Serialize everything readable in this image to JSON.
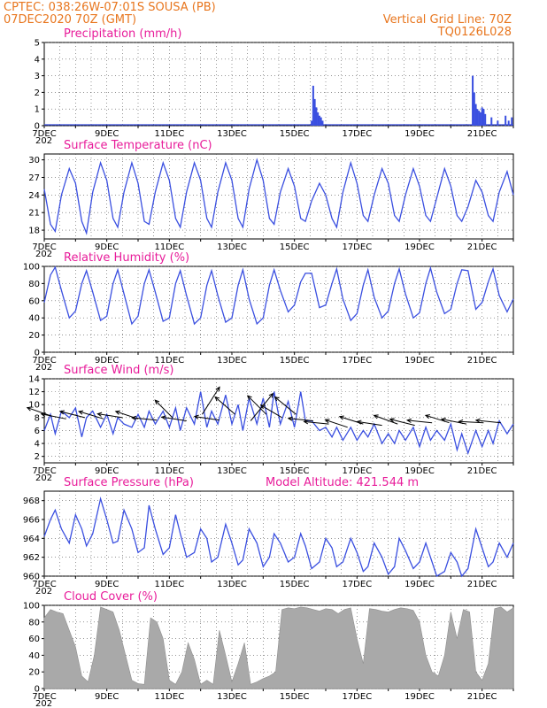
{
  "header": {
    "line1_left": "CPTEC:   038:26W-07:01S   SOUSA (PB)",
    "line2_left": "07DEC2020 70Z (GMT)",
    "line1_right": "Vertical Grid Line: 70Z",
    "line2_right": "TQ0126L028"
  },
  "x_axis": {
    "date_labels": [
      "7DEC",
      "9DEC",
      "11DEC",
      "13DEC",
      "15DEC",
      "17DEC",
      "19DEC",
      "21DEC"
    ],
    "year_stub": "202"
  },
  "colors": {
    "line": "#3a4fe0",
    "header": "#e8761e",
    "title": "#e81c9a",
    "cloud": "#a9a9a9",
    "arrow": "#000000"
  },
  "chart_data": [
    {
      "type": "bar",
      "title": "Precipitation (mm/h)",
      "ylim": [
        0,
        5
      ],
      "yticks": [
        0,
        1,
        2,
        3,
        4,
        5
      ],
      "x_unit": "days since 7DEC 00Z",
      "xlim": [
        0,
        15
      ],
      "series": [
        {
          "x": [
            8.55,
            8.6,
            8.65,
            8.7,
            8.75,
            8.8,
            8.85,
            8.9,
            13.7,
            13.75,
            13.8,
            13.85,
            13.9,
            13.95,
            14.0,
            14.05,
            14.1,
            14.3,
            14.5,
            14.75,
            14.85,
            14.95
          ],
          "values": [
            0.3,
            2.4,
            1.6,
            1.1,
            0.8,
            0.6,
            0.5,
            0.3,
            3.0,
            2.0,
            1.3,
            1.0,
            0.9,
            0.8,
            1.1,
            1.0,
            0.7,
            0.5,
            0.3,
            0.6,
            0.3,
            0.5
          ]
        }
      ]
    },
    {
      "type": "line",
      "title": "Surface Temperature (nC)",
      "ylim": [
        16.5,
        31
      ],
      "yticks": [
        18,
        21,
        24,
        27,
        30
      ],
      "x_unit": "days since 7DEC 00Z",
      "series": [
        {
          "x": [
            0,
            0.2,
            0.35,
            0.55,
            0.8,
            1.0,
            1.2,
            1.35,
            1.55,
            1.8,
            2.0,
            2.2,
            2.35,
            2.55,
            2.8,
            3.0,
            3.2,
            3.35,
            3.55,
            3.8,
            4.0,
            4.2,
            4.35,
            4.55,
            4.8,
            5.0,
            5.2,
            5.35,
            5.55,
            5.8,
            6.0,
            6.2,
            6.35,
            6.55,
            6.8,
            7.0,
            7.2,
            7.35,
            7.55,
            7.8,
            8.0,
            8.2,
            8.35,
            8.55,
            8.8,
            9.0,
            9.2,
            9.35,
            9.55,
            9.8,
            10.0,
            10.2,
            10.35,
            10.55,
            10.8,
            11.0,
            11.2,
            11.35,
            11.55,
            11.8,
            12.0,
            12.2,
            12.35,
            12.55,
            12.8,
            13.0,
            13.2,
            13.35,
            13.55,
            13.8,
            14.0,
            14.2,
            14.35,
            14.55,
            14.8,
            15.0
          ],
          "values": [
            25,
            19,
            17.8,
            24,
            28.5,
            26,
            19.5,
            17.5,
            24.5,
            29.5,
            26.5,
            20,
            18.5,
            24.5,
            29.5,
            26,
            19.5,
            19,
            24.5,
            29.5,
            26.5,
            20,
            18.5,
            24.5,
            29.5,
            26.5,
            20,
            18.5,
            24.5,
            29.5,
            26.5,
            20,
            18.5,
            25,
            30,
            26.5,
            20,
            19,
            24.5,
            28.5,
            25.5,
            20,
            19.5,
            23,
            26,
            24,
            20,
            18.5,
            24.5,
            29.5,
            26,
            20.5,
            19.5,
            24,
            28.5,
            26,
            20.5,
            19.5,
            24,
            28.5,
            25.5,
            20.5,
            19.5,
            23.5,
            28.5,
            25.5,
            20.5,
            19.5,
            22,
            26.5,
            24.5,
            20.5,
            19.5,
            24.5,
            28,
            24
          ]
        }
      ]
    },
    {
      "type": "line",
      "title": "Relative Humidity (%)",
      "ylim": [
        0,
        100
      ],
      "yticks": [
        0,
        20,
        40,
        60,
        80,
        100
      ],
      "x_unit": "days since 7DEC 00Z",
      "series": [
        {
          "x": [
            0,
            0.2,
            0.35,
            0.55,
            0.8,
            1.0,
            1.2,
            1.35,
            1.55,
            1.8,
            2.0,
            2.2,
            2.35,
            2.55,
            2.8,
            3.0,
            3.2,
            3.35,
            3.55,
            3.8,
            4.0,
            4.2,
            4.35,
            4.55,
            4.8,
            5.0,
            5.2,
            5.35,
            5.55,
            5.8,
            6.0,
            6.2,
            6.35,
            6.55,
            6.8,
            7.0,
            7.2,
            7.35,
            7.55,
            7.8,
            8.0,
            8.2,
            8.35,
            8.55,
            8.8,
            9.0,
            9.2,
            9.35,
            9.55,
            9.8,
            10.0,
            10.2,
            10.35,
            10.55,
            10.8,
            11.0,
            11.2,
            11.35,
            11.55,
            11.8,
            12.0,
            12.2,
            12.35,
            12.55,
            12.8,
            13.0,
            13.2,
            13.35,
            13.55,
            13.8,
            14.0,
            14.2,
            14.35,
            14.55,
            14.8,
            15.0
          ],
          "values": [
            58,
            90,
            99,
            72,
            40,
            48,
            80,
            95,
            70,
            37,
            42,
            80,
            96,
            68,
            33,
            42,
            80,
            96,
            70,
            36,
            40,
            80,
            95,
            66,
            33,
            40,
            78,
            95,
            66,
            35,
            40,
            78,
            96,
            62,
            33,
            40,
            78,
            96,
            72,
            47,
            55,
            82,
            92,
            92,
            52,
            55,
            80,
            97,
            62,
            37,
            45,
            78,
            96,
            64,
            40,
            48,
            80,
            97,
            68,
            40,
            46,
            80,
            98,
            70,
            45,
            50,
            80,
            96,
            95,
            50,
            58,
            82,
            97,
            66,
            47,
            62
          ]
        }
      ]
    },
    {
      "type": "line",
      "title": "Surface Wind (m/s)",
      "ylim": [
        1,
        14
      ],
      "yticks": [
        2,
        4,
        6,
        8,
        10,
        12,
        14
      ],
      "x_unit": "days since 7DEC 00Z",
      "series": [
        {
          "x": [
            0,
            0.2,
            0.35,
            0.55,
            0.8,
            1.0,
            1.2,
            1.35,
            1.55,
            1.8,
            2.0,
            2.2,
            2.35,
            2.55,
            2.8,
            3.0,
            3.2,
            3.35,
            3.55,
            3.8,
            4.0,
            4.2,
            4.35,
            4.55,
            4.8,
            5.0,
            5.2,
            5.35,
            5.55,
            5.8,
            6.0,
            6.2,
            6.35,
            6.55,
            6.8,
            7.0,
            7.2,
            7.35,
            7.55,
            7.8,
            8.0,
            8.2,
            8.35,
            8.55,
            8.8,
            9.0,
            9.2,
            9.35,
            9.55,
            9.8,
            10.0,
            10.2,
            10.35,
            10.55,
            10.8,
            11.0,
            11.2,
            11.35,
            11.55,
            11.8,
            12.0,
            12.2,
            12.35,
            12.55,
            12.8,
            13.0,
            13.2,
            13.35,
            13.55,
            13.8,
            14.0,
            14.2,
            14.35,
            14.55,
            14.8,
            15.0
          ],
          "values": [
            6,
            8.5,
            5.5,
            9,
            8,
            9.5,
            5,
            8,
            9,
            6.5,
            8.5,
            5.5,
            8,
            7,
            6.5,
            8.5,
            6.5,
            9,
            7,
            9,
            6.5,
            9.5,
            6,
            9.5,
            7,
            12,
            6.5,
            9,
            7,
            11.5,
            7,
            10,
            6,
            11,
            7,
            11,
            6.5,
            12,
            7,
            10.5,
            6.5,
            12,
            7.5,
            7.5,
            6,
            6.5,
            5,
            6.5,
            4.5,
            6.5,
            4.5,
            6,
            5,
            7,
            4,
            5.5,
            4,
            6,
            4.5,
            6.5,
            3.5,
            6.5,
            4.5,
            6,
            4.5,
            7,
            3,
            5.5,
            2.5,
            6,
            3.5,
            6,
            4,
            7.5,
            5.5,
            7
          ]
        }
      ]
    },
    {
      "type": "line",
      "title": "Surface Pressure (hPa)",
      "subtitle": "Model Altitude: 421.544 m",
      "ylim": [
        960,
        969
      ],
      "yticks": [
        960,
        962,
        964,
        966,
        968
      ],
      "x_unit": "days since 7DEC 00Z",
      "series": [
        {
          "x": [
            0,
            0.2,
            0.35,
            0.55,
            0.8,
            1.0,
            1.2,
            1.35,
            1.55,
            1.8,
            2.0,
            2.2,
            2.35,
            2.55,
            2.8,
            3.0,
            3.2,
            3.35,
            3.55,
            3.8,
            4.0,
            4.2,
            4.35,
            4.55,
            4.8,
            5.0,
            5.2,
            5.35,
            5.55,
            5.8,
            6.0,
            6.2,
            6.35,
            6.55,
            6.8,
            7.0,
            7.2,
            7.35,
            7.55,
            7.8,
            8.0,
            8.2,
            8.35,
            8.55,
            8.8,
            9.0,
            9.2,
            9.35,
            9.55,
            9.8,
            10.0,
            10.2,
            10.35,
            10.55,
            10.8,
            11.0,
            11.2,
            11.35,
            11.55,
            11.8,
            12.0,
            12.2,
            12.35,
            12.55,
            12.8,
            13.0,
            13.2,
            13.35,
            13.55,
            13.8,
            14.0,
            14.2,
            14.35,
            14.55,
            14.8,
            15.0
          ],
          "values": [
            964.2,
            966,
            967,
            965,
            963.5,
            966.5,
            965,
            963.2,
            964.5,
            968.2,
            966,
            963.5,
            963.7,
            967,
            965,
            962.5,
            963,
            967.5,
            965,
            962.3,
            963,
            966.5,
            964.5,
            962,
            962.5,
            965,
            964,
            961.5,
            962,
            965.5,
            963.5,
            961.2,
            961.7,
            965,
            963.5,
            961,
            962,
            964.5,
            963.5,
            961.5,
            962,
            964.5,
            963.2,
            960.8,
            961.5,
            964,
            963,
            961,
            961.5,
            964,
            962.5,
            960.5,
            961,
            963.5,
            962,
            960.2,
            961,
            964,
            962.7,
            960.8,
            961.5,
            963.5,
            962,
            960,
            960.5,
            962.5,
            961.5,
            960,
            960.8,
            965,
            963,
            961,
            961.5,
            963.5,
            962,
            963.5
          ]
        }
      ]
    },
    {
      "type": "area",
      "title": "Cloud Cover (%)",
      "ylim": [
        0,
        100
      ],
      "yticks": [
        0,
        20,
        40,
        60,
        80,
        100
      ],
      "x_unit": "days since 7DEC 00Z",
      "series": [
        {
          "x": [
            0,
            0.2,
            0.4,
            0.6,
            0.8,
            1.0,
            1.2,
            1.4,
            1.6,
            1.8,
            2.0,
            2.2,
            2.4,
            2.6,
            2.8,
            3.0,
            3.2,
            3.4,
            3.6,
            3.8,
            4.0,
            4.2,
            4.4,
            4.6,
            4.8,
            5.0,
            5.2,
            5.4,
            5.6,
            5.8,
            6.0,
            6.2,
            6.4,
            6.6,
            6.8,
            7.0,
            7.2,
            7.4,
            7.6,
            7.8,
            8.0,
            8.2,
            8.4,
            8.6,
            8.8,
            9.0,
            9.2,
            9.4,
            9.6,
            9.8,
            10.0,
            10.2,
            10.4,
            10.6,
            10.8,
            11.0,
            11.2,
            11.4,
            11.6,
            11.8,
            12.0,
            12.2,
            12.4,
            12.6,
            12.8,
            13.0,
            13.2,
            13.4,
            13.6,
            13.8,
            14.0,
            14.2,
            14.4,
            14.6,
            14.8,
            15.0
          ],
          "values": [
            85,
            95,
            92,
            90,
            70,
            50,
            15,
            8,
            40,
            98,
            95,
            92,
            70,
            40,
            10,
            6,
            5,
            85,
            80,
            60,
            10,
            5,
            20,
            55,
            35,
            5,
            10,
            5,
            70,
            40,
            8,
            30,
            55,
            5,
            8,
            12,
            15,
            20,
            95,
            97,
            96,
            98,
            97,
            95,
            93,
            96,
            95,
            90,
            95,
            97,
            60,
            30,
            96,
            95,
            93,
            92,
            95,
            97,
            96,
            94,
            80,
            40,
            20,
            15,
            40,
            92,
            60,
            95,
            92,
            20,
            10,
            30,
            96,
            98,
            92,
            97
          ]
        }
      ]
    },
    {
      "type": "vector",
      "title": "Surface Wind direction",
      "x_unit": "days since 7DEC 00Z",
      "points": [
        {
          "x": 0.25,
          "y": 8.2,
          "u": -1.0,
          "v": 0.35
        },
        {
          "x": 0.7,
          "y": 7.8,
          "u": -1.0,
          "v": 0.2
        },
        {
          "x": 1.3,
          "y": 8.0,
          "u": -1.0,
          "v": 0.25
        },
        {
          "x": 1.9,
          "y": 7.8,
          "u": -1.0,
          "v": 0.3
        },
        {
          "x": 2.5,
          "y": 8.0,
          "u": -1.0,
          "v": 0.15
        },
        {
          "x": 3.0,
          "y": 7.8,
          "u": -0.9,
          "v": 0.3
        },
        {
          "x": 3.6,
          "y": 7.6,
          "u": -1.0,
          "v": 0.1
        },
        {
          "x": 4.1,
          "y": 8.0,
          "u": -0.7,
          "v": 0.7
        },
        {
          "x": 4.55,
          "y": 7.5,
          "u": -1.0,
          "v": 0.15
        },
        {
          "x": 5.05,
          "y": 8.5,
          "u": 0.7,
          "v": 1.1
        },
        {
          "x": 5.6,
          "y": 7.6,
          "u": -1.0,
          "v": 0.15
        },
        {
          "x": 6.1,
          "y": 8.5,
          "u": -0.8,
          "v": 0.7
        },
        {
          "x": 6.6,
          "y": 7.5,
          "u": 0.9,
          "v": 1.1
        },
        {
          "x": 7.1,
          "y": 8.5,
          "u": -0.75,
          "v": 0.75
        },
        {
          "x": 7.6,
          "y": 8.0,
          "u": -0.85,
          "v": 0.5
        },
        {
          "x": 8.05,
          "y": 8.5,
          "u": -0.85,
          "v": 0.7
        },
        {
          "x": 8.6,
          "y": 7.5,
          "u": -1.0,
          "v": 0.1
        },
        {
          "x": 9.1,
          "y": 7.0,
          "u": -1.0,
          "v": 0.1
        },
        {
          "x": 9.7,
          "y": 6.5,
          "u": -0.9,
          "v": 0.3
        },
        {
          "x": 10.2,
          "y": 7.0,
          "u": -0.95,
          "v": 0.3
        },
        {
          "x": 10.8,
          "y": 6.8,
          "u": -1.0,
          "v": 0.15
        },
        {
          "x": 11.3,
          "y": 7.0,
          "u": -0.95,
          "v": 0.35
        },
        {
          "x": 11.85,
          "y": 6.8,
          "u": -1.0,
          "v": 0.25
        },
        {
          "x": 12.4,
          "y": 7.2,
          "u": -1.0,
          "v": 0.1
        },
        {
          "x": 12.95,
          "y": 7.2,
          "u": -0.95,
          "v": 0.3
        },
        {
          "x": 13.5,
          "y": 7.0,
          "u": -1.0,
          "v": 0.2
        },
        {
          "x": 14.05,
          "y": 7.2,
          "u": -1.0,
          "v": 0.05
        },
        {
          "x": 14.6,
          "y": 7.2,
          "u": -1.0,
          "v": 0.1
        }
      ]
    }
  ]
}
